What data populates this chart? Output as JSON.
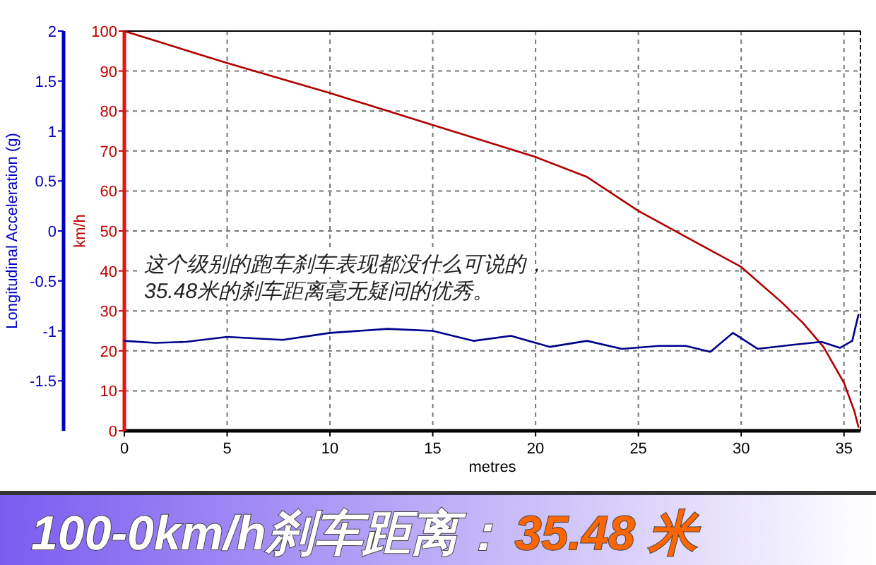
{
  "chart_data": {
    "type": "line",
    "title": "100-0km/h刹车距离：",
    "subtitle": "35.48 米",
    "xlabel": "metres",
    "ylabel": "km/h",
    "y2label": "Longitudinal Acceleration (g)",
    "annotations": [
      "这个级别的跑车刹车表现都没什么可说的，\n35.48米的刹车距离毫无疑问的优秀。"
    ],
    "xlim": [
      0,
      35.8
    ],
    "xticks": [
      0,
      5,
      10,
      15,
      20,
      25,
      30,
      35
    ],
    "ylim": [
      0,
      100
    ],
    "yticks": [
      0,
      10,
      20,
      30,
      40,
      50,
      60,
      70,
      80,
      90,
      100
    ],
    "y2lim": [
      -2,
      2
    ],
    "y2ticks": [
      -1.5,
      -1,
      -0.5,
      0,
      0.5,
      1,
      1.5,
      2
    ],
    "grid": true,
    "series": [
      {
        "color": "#b00000",
        "x": [
          0,
          5,
          10,
          15,
          20,
          22.5,
          25,
          27.5,
          30,
          32,
          33,
          34,
          35,
          35.5,
          35.7
        ],
        "values": [
          100,
          92,
          84.5,
          76.5,
          68.5,
          63.5,
          55,
          48,
          41,
          32,
          27,
          21,
          12,
          5,
          1
        ]
      },
      {
        "color": "#00008b",
        "axis": "y2",
        "x": [
          0,
          1.5,
          3,
          5,
          7.7,
          10,
          12.8,
          15,
          17,
          18.8,
          20.7,
          22.5,
          24.2,
          26,
          27.3,
          28.5,
          29.6,
          30.8,
          32.5,
          33.9,
          34.8,
          35.4,
          35.7
        ],
        "values": [
          -1.1,
          -1.12,
          -1.11,
          -1.06,
          -1.09,
          -1.02,
          -0.98,
          -1.0,
          -1.1,
          -1.05,
          -1.16,
          -1.1,
          -1.18,
          -1.15,
          -1.15,
          -1.21,
          -1.02,
          -1.18,
          -1.14,
          -1.11,
          -1.17,
          -1.1,
          -0.84
        ]
      }
    ]
  }
}
